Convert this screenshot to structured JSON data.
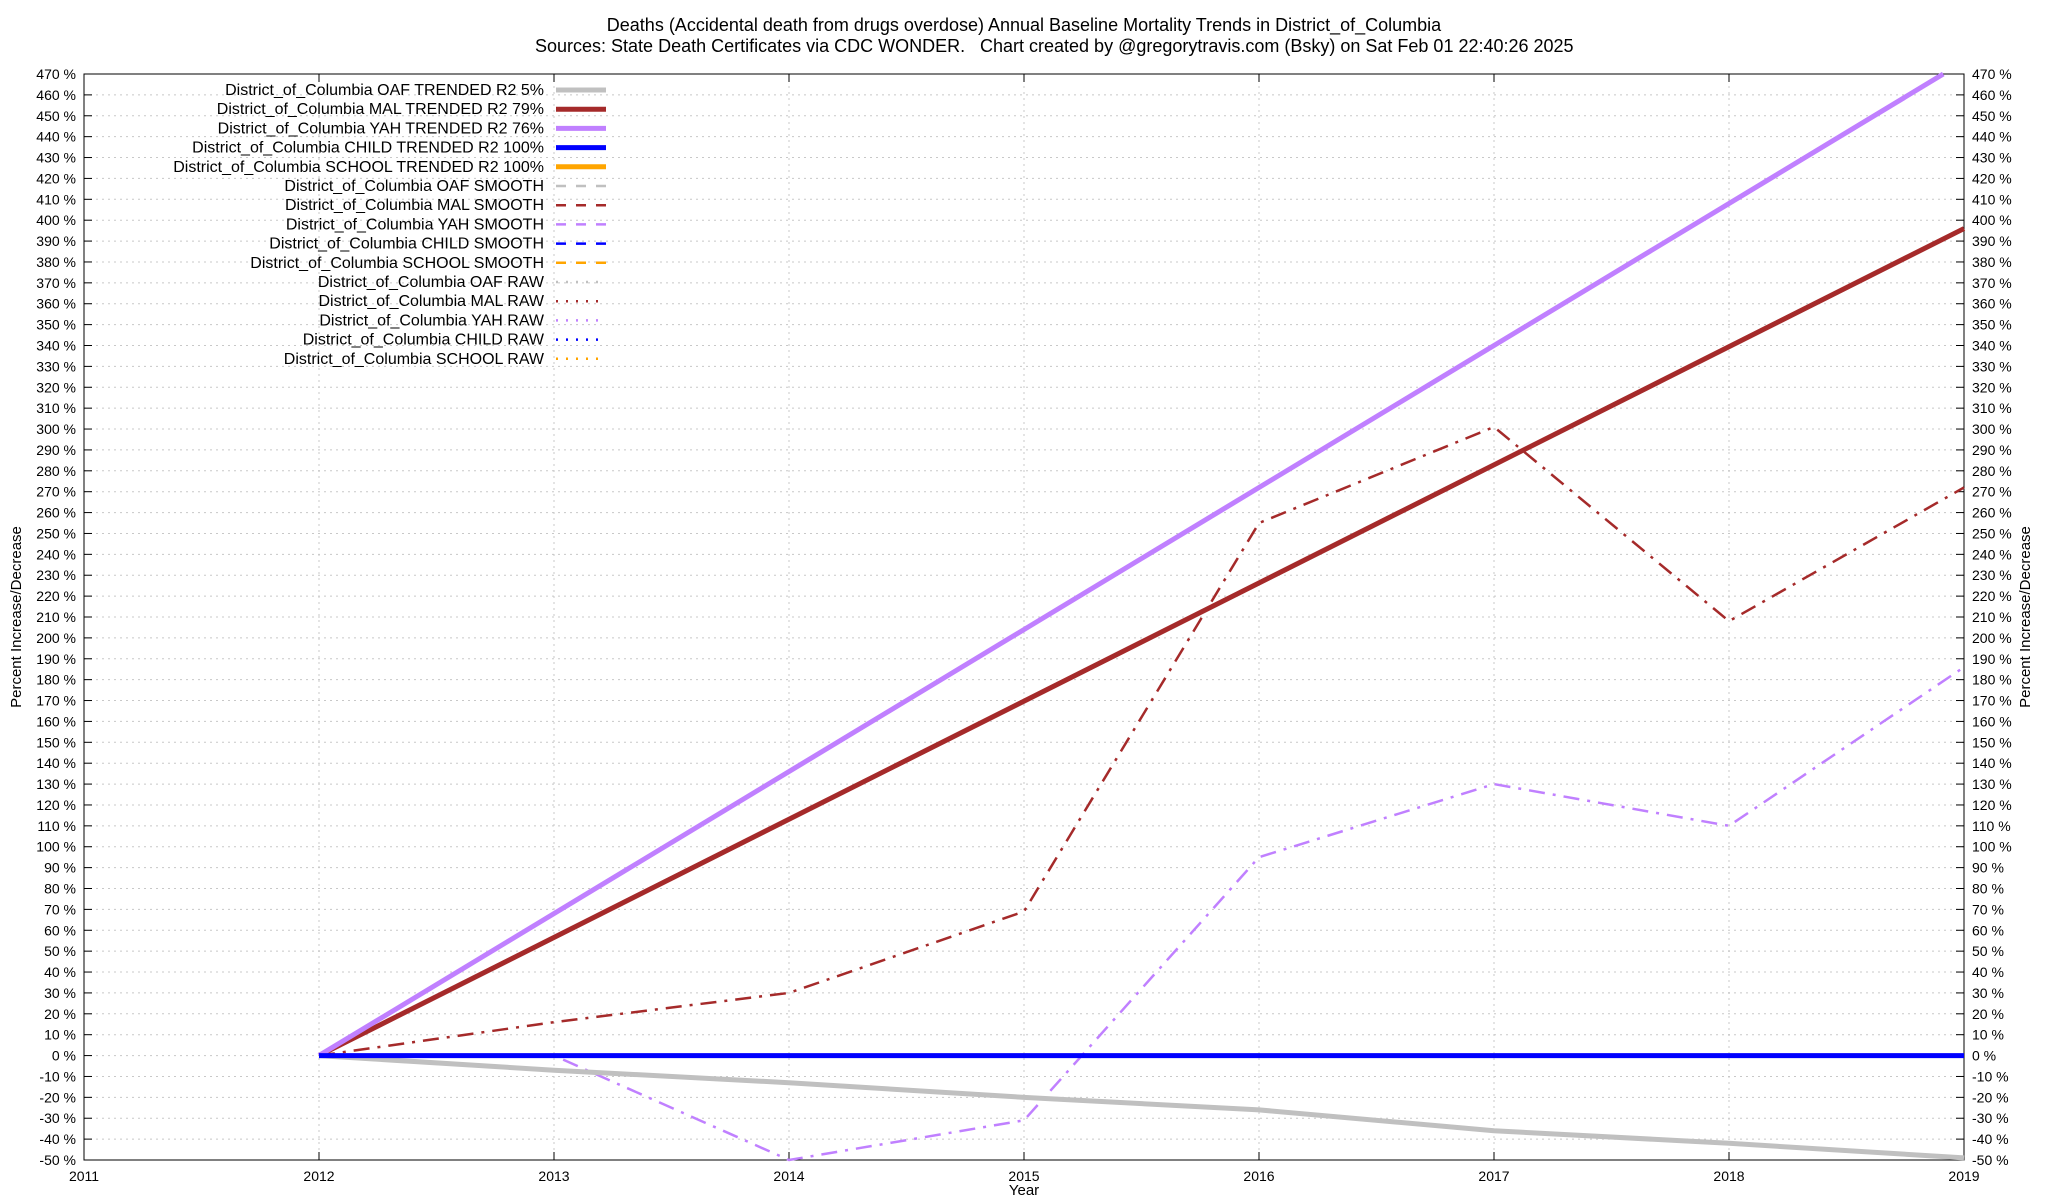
{
  "chart_data": {
    "type": "line",
    "title": "Deaths (Accidental death from drugs overdose)  Annual Baseline Mortality Trends in District_of_Columbia",
    "subtitle_left": "Sources: State Death Certificates via CDC WONDER.",
    "subtitle_right": "Chart created by @gregorytravis.com (Bsky) on Sat Feb 01 22:40:26 2025",
    "xlabel": "Year",
    "ylabel": "Percent Increase/Decrease",
    "ylabel_right": "Percent Increase/Decrease",
    "xlim": [
      2011,
      2019
    ],
    "ylim": [
      -50,
      470
    ],
    "x_ticks": [
      2011,
      2012,
      2013,
      2014,
      2015,
      2016,
      2017,
      2018,
      2019
    ],
    "y_tick_step": 10,
    "y_tick_suffix": " %",
    "grid": true,
    "legend_position": "top-left",
    "colors": {
      "oaf": "#c0c0c0",
      "mal": "#a52a2a",
      "yah": "#c080ff",
      "child": "#0000ff",
      "school": "#ffa500"
    },
    "series": [
      {
        "name": "District_of_Columbia OAF TRENDED R2   5%",
        "color": "#c0c0c0",
        "style": "solid-thick",
        "x": [
          2012,
          2013,
          2014,
          2015,
          2016,
          2017,
          2018,
          2019
        ],
        "y": [
          0,
          -7,
          -13,
          -20,
          -26,
          -36,
          -42,
          -49
        ]
      },
      {
        "name": "District_of_Columbia MAL TRENDED R2  79%",
        "color": "#a52a2a",
        "style": "solid-thick",
        "x": [
          2012,
          2019
        ],
        "y": [
          0,
          396
        ]
      },
      {
        "name": "District_of_Columbia YAH TRENDED R2  76%",
        "color": "#c080ff",
        "style": "solid-thick",
        "x": [
          2012,
          2019
        ],
        "y": [
          0,
          476
        ]
      },
      {
        "name": "District_of_Columbia CHILD TRENDED R2 100%",
        "color": "#0000ff",
        "style": "solid-thick",
        "x": [
          2012,
          2019
        ],
        "y": [
          0,
          0
        ]
      },
      {
        "name": "District_of_Columbia SCHOOL TRENDED R2 100%",
        "color": "#ffa500",
        "style": "solid-thick",
        "x": [],
        "y": []
      },
      {
        "name": "District_of_Columbia OAF SMOOTH",
        "color": "#c0c0c0",
        "style": "dashed",
        "x": [],
        "y": []
      },
      {
        "name": "District_of_Columbia MAL SMOOTH",
        "color": "#a52a2a",
        "style": "dashed",
        "x": [],
        "y": []
      },
      {
        "name": "District_of_Columbia YAH SMOOTH",
        "color": "#c080ff",
        "style": "dashed",
        "x": [],
        "y": []
      },
      {
        "name": "District_of_Columbia CHILD SMOOTH",
        "color": "#0000ff",
        "style": "dashed",
        "x": [],
        "y": []
      },
      {
        "name": "District_of_Columbia SCHOOL SMOOTH",
        "color": "#ffa500",
        "style": "dashed",
        "x": [],
        "y": []
      },
      {
        "name": "District_of_Columbia OAF RAW",
        "color": "#c0c0c0",
        "style": "dotted",
        "x": [],
        "y": []
      },
      {
        "name": "District_of_Columbia MAL RAW",
        "color": "#a52a2a",
        "style": "dotted",
        "x": [],
        "y": []
      },
      {
        "name": "District_of_Columbia YAH RAW",
        "color": "#c080ff",
        "style": "dotted",
        "x": [],
        "y": []
      },
      {
        "name": "District_of_Columbia CHILD RAW",
        "color": "#0000ff",
        "style": "dotted",
        "x": [],
        "y": []
      },
      {
        "name": "District_of_Columbia SCHOOL RAW",
        "color": "#ffa500",
        "style": "dotted",
        "x": [],
        "y": []
      },
      {
        "name": "",
        "color": "#a52a2a",
        "style": "dashdot",
        "x": [
          2012,
          2013,
          2014,
          2015,
          2016,
          2017,
          2018,
          2019
        ],
        "y": [
          0,
          16,
          30,
          69,
          255,
          301,
          208,
          272
        ]
      },
      {
        "name": "",
        "color": "#c080ff",
        "style": "dashdot",
        "x": [
          2012,
          2013,
          2014,
          2015,
          2016,
          2017,
          2018,
          2019
        ],
        "y": [
          0,
          0,
          -50,
          -31,
          95,
          130,
          110,
          186
        ]
      }
    ]
  }
}
